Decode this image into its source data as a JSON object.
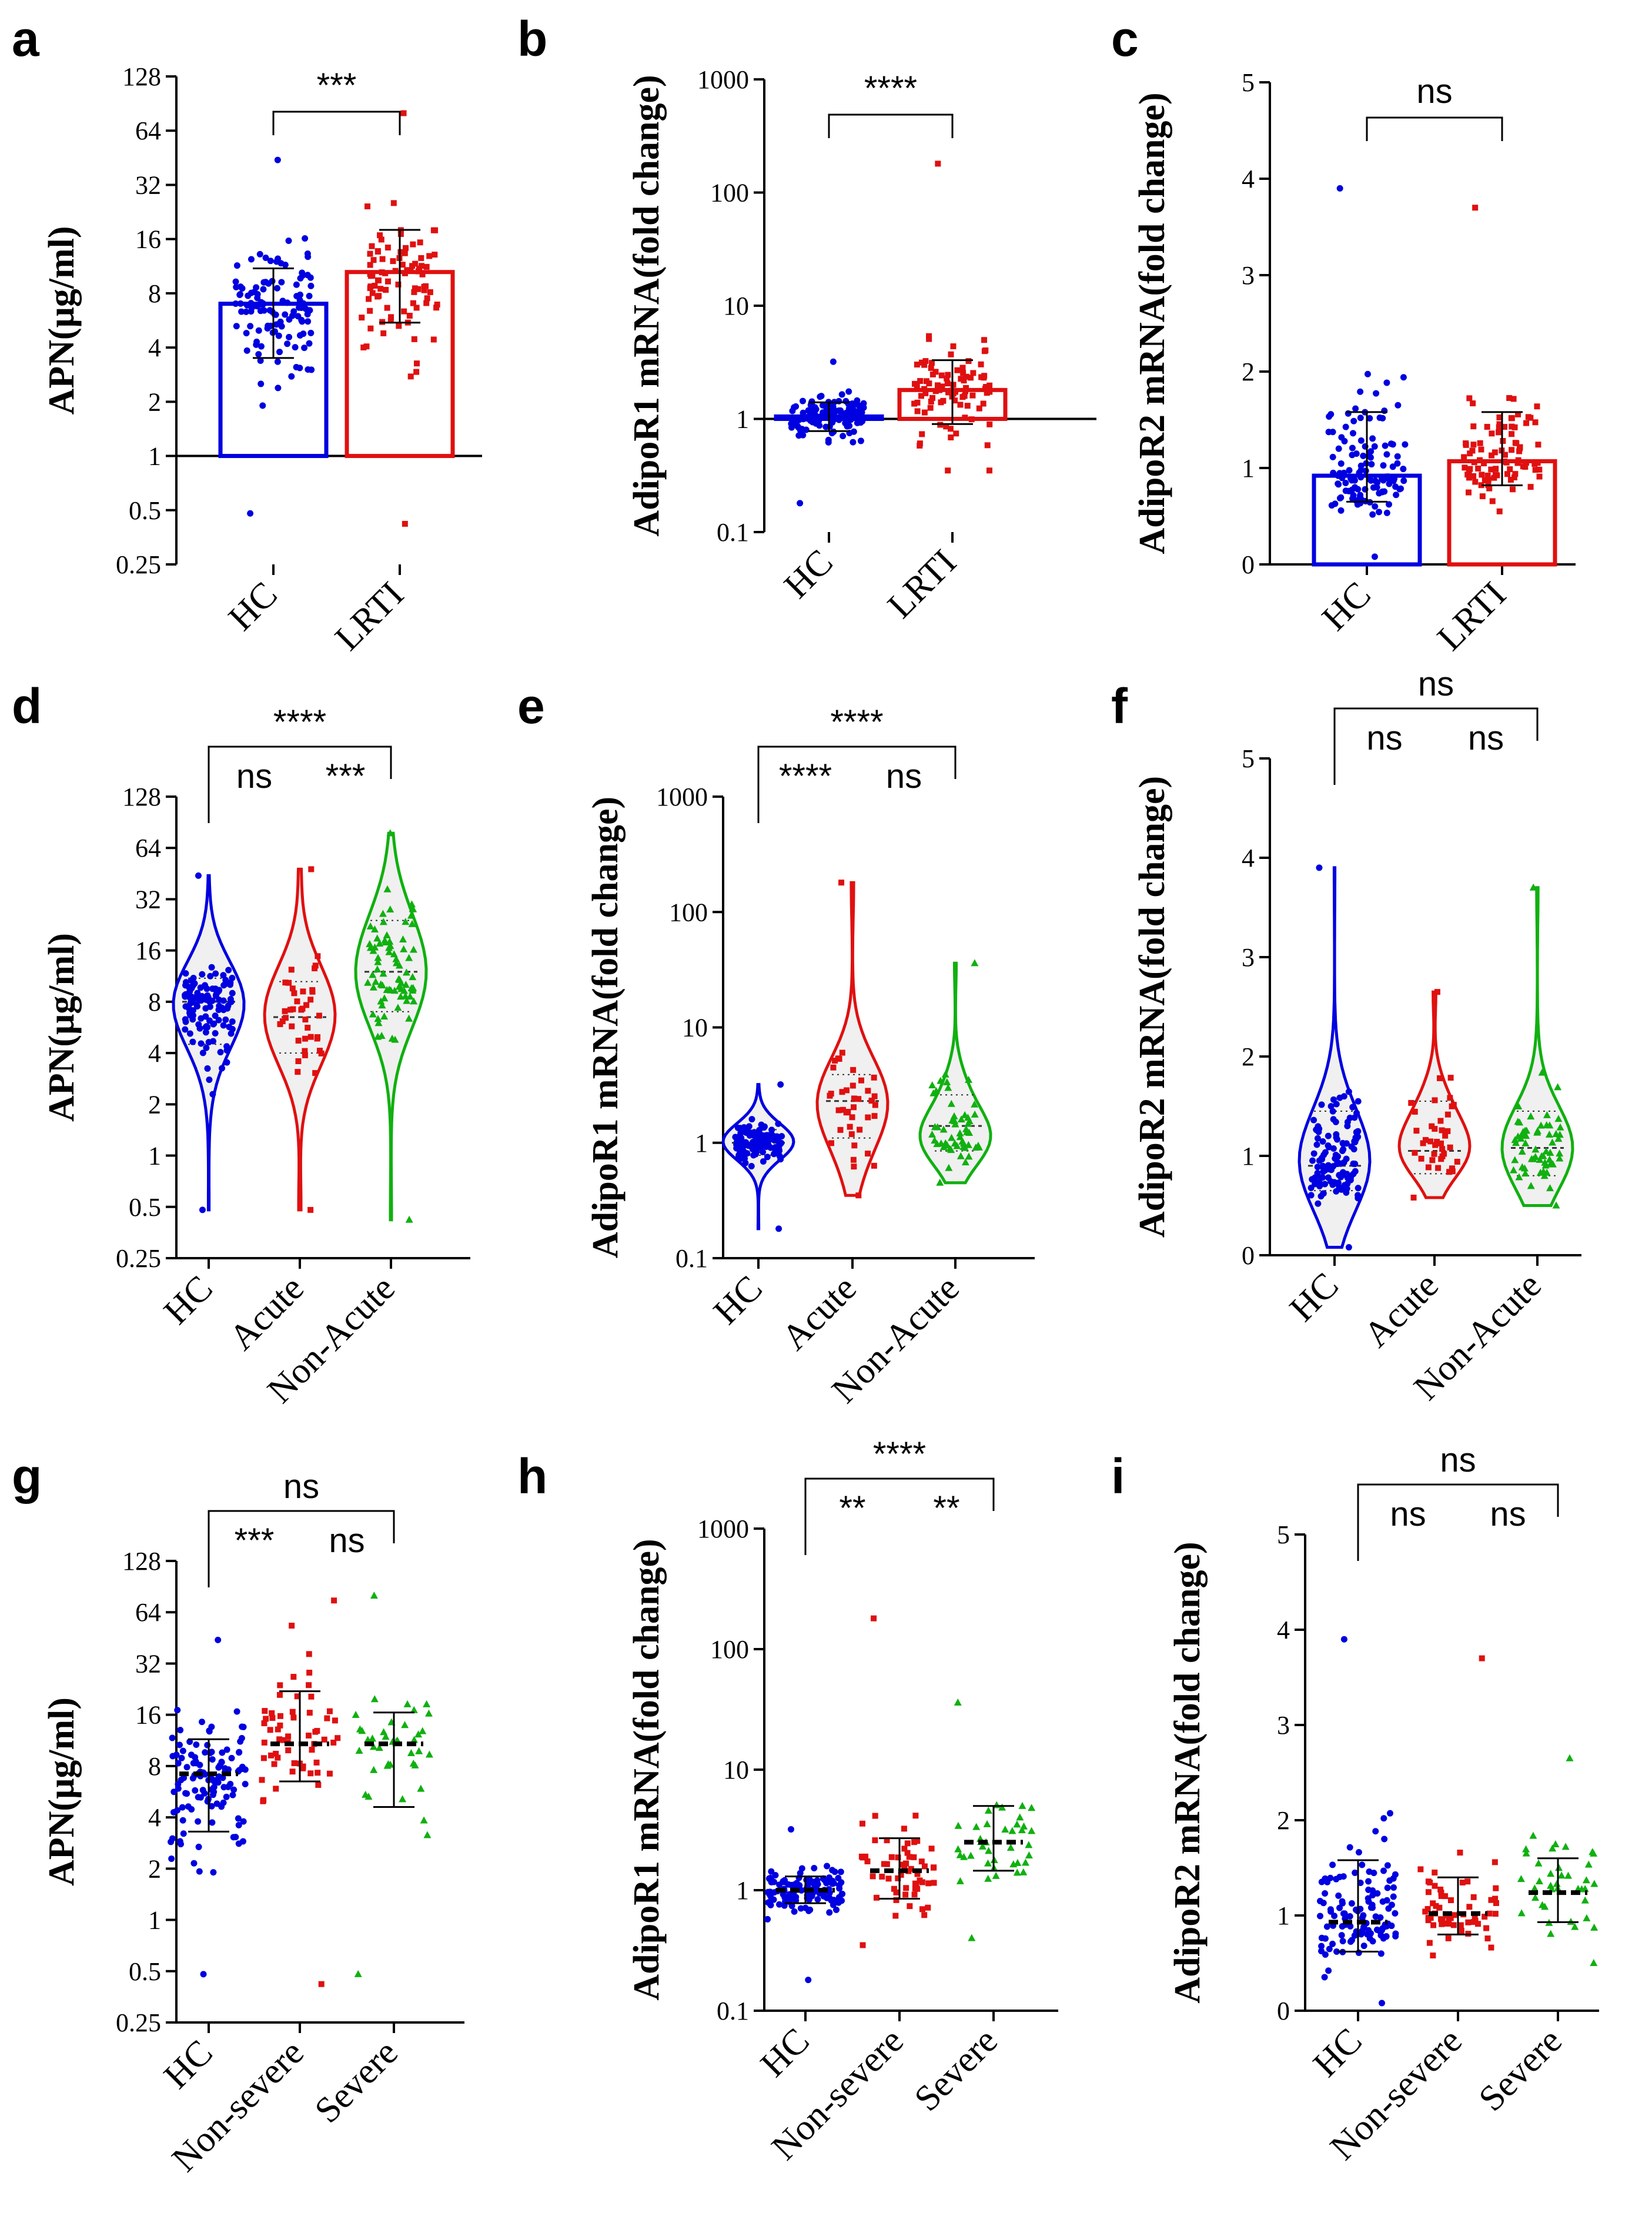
{
  "figure": {
    "colors": {
      "HC": "#0000e0",
      "LRTI": "#e01010",
      "Acute": "#e01010",
      "NonAcute": "#10b010",
      "NonSevere": "#e01010",
      "Severe": "#10b010",
      "axis": "#000000"
    }
  },
  "chart_data": [
    {
      "id": "a",
      "label": "a",
      "type": "bar+scatter",
      "scale": "log2",
      "ylabel": "APN(μg/ml)",
      "yticks": [
        0.25,
        0.5,
        1,
        2,
        4,
        8,
        16,
        32,
        64,
        128
      ],
      "ytick_labels": [
        "0.25",
        "0.5",
        "1",
        "2",
        "4",
        "8",
        "16",
        "32",
        "64",
        "128"
      ],
      "ylim": [
        0.25,
        128
      ],
      "baseline": 1,
      "categories": [
        "HC",
        "LRTI"
      ],
      "series": [
        {
          "name": "HC",
          "n": 120,
          "marker": "circle",
          "center": 7,
          "lo": 3.5,
          "hi": 11,
          "min": 0.48,
          "max": 44
        },
        {
          "name": "LRTI",
          "n": 90,
          "marker": "square",
          "center": 10.5,
          "lo": 5.5,
          "hi": 18,
          "min": 0.42,
          "max": 80
        }
      ],
      "comparisons": [
        {
          "from": 0,
          "to": 1,
          "label": "***",
          "level": 0
        }
      ]
    },
    {
      "id": "b",
      "label": "b",
      "type": "bar+scatter",
      "scale": "log10",
      "ylabel": "AdipoR1 mRNA(fold change)",
      "yticks": [
        0.1,
        1,
        10,
        100,
        1000
      ],
      "ytick_labels": [
        "0.1",
        "1",
        "10",
        "100",
        "1000"
      ],
      "ylim": [
        0.1,
        1000
      ],
      "baseline": 1,
      "categories": [
        "HC",
        "LRTI"
      ],
      "series": [
        {
          "name": "HC",
          "n": 120,
          "marker": "circle",
          "center": 1.05,
          "lo": 0.78,
          "hi": 1.4,
          "min": 0.18,
          "max": 3.2
        },
        {
          "name": "LRTI",
          "n": 90,
          "marker": "square",
          "center": 1.8,
          "lo": 0.9,
          "hi": 3.3,
          "min": 0.35,
          "max": 180
        }
      ],
      "comparisons": [
        {
          "from": 0,
          "to": 1,
          "label": "****",
          "level": 0
        }
      ]
    },
    {
      "id": "c",
      "label": "c",
      "type": "bar+scatter",
      "scale": "linear",
      "ylabel": "AdipoR2 mRNA(fold change)",
      "yticks": [
        0,
        1,
        2,
        3,
        4,
        5
      ],
      "ytick_labels": [
        "0",
        "1",
        "2",
        "3",
        "4",
        "5"
      ],
      "ylim": [
        0,
        5
      ],
      "baseline": 0,
      "categories": [
        "HC",
        "LRTI"
      ],
      "series": [
        {
          "name": "HC",
          "n": 120,
          "marker": "circle",
          "center": 0.92,
          "lo": 0.65,
          "hi": 1.58,
          "min": 0.08,
          "max": 3.9
        },
        {
          "name": "LRTI",
          "n": 90,
          "marker": "square",
          "center": 1.07,
          "lo": 0.82,
          "hi": 1.58,
          "min": 0.55,
          "max": 3.7
        }
      ],
      "comparisons": [
        {
          "from": 0,
          "to": 1,
          "label": "ns",
          "level": 0
        }
      ]
    },
    {
      "id": "d",
      "label": "d",
      "type": "violin",
      "scale": "log2",
      "ylabel": "APN(μg/ml)",
      "yticks": [
        0.25,
        0.5,
        1,
        2,
        4,
        8,
        16,
        32,
        64,
        128
      ],
      "ytick_labels": [
        "0.25",
        "0.5",
        "1",
        "2",
        "4",
        "8",
        "16",
        "32",
        "64",
        "128"
      ],
      "ylim": [
        0.25,
        128
      ],
      "categories": [
        "HC",
        "Acute",
        "Non-Acute"
      ],
      "series": [
        {
          "name": "HC",
          "n": 120,
          "marker": "circle",
          "median": 8,
          "q1": 4.5,
          "q3": 11,
          "min": 0.48,
          "max": 44
        },
        {
          "name": "Acute",
          "n": 40,
          "marker": "square",
          "median": 6.5,
          "q1": 4,
          "q3": 10.5,
          "min": 0.48,
          "max": 48
        },
        {
          "name": "Non-Acute",
          "n": 80,
          "marker": "triangle",
          "median": 12,
          "q1": 7,
          "q3": 24,
          "min": 0.42,
          "max": 78
        }
      ],
      "comparisons": [
        {
          "from": 0,
          "to": 2,
          "label": "****",
          "level": 1
        },
        {
          "from": 0,
          "to": 1,
          "label": "ns",
          "level": 0,
          "shared": true
        },
        {
          "from": 1,
          "to": 2,
          "label": "***",
          "level": 0,
          "shared": true
        }
      ]
    },
    {
      "id": "e",
      "label": "e",
      "type": "violin",
      "scale": "log10",
      "ylabel": "AdipoR1 mRNA(fold change)",
      "yticks": [
        0.1,
        1,
        10,
        100,
        1000
      ],
      "ytick_labels": [
        "0.1",
        "1",
        "10",
        "100",
        "1000"
      ],
      "ylim": [
        0.1,
        1000
      ],
      "categories": [
        "HC",
        "Acute",
        "Non-Acute"
      ],
      "series": [
        {
          "name": "HC",
          "n": 120,
          "marker": "circle",
          "median": 1.0,
          "q1": 0.78,
          "q3": 1.3,
          "min": 0.18,
          "max": 3.2
        },
        {
          "name": "Acute",
          "n": 40,
          "marker": "square",
          "median": 2.3,
          "q1": 1.1,
          "q3": 3.9,
          "min": 0.35,
          "max": 180
        },
        {
          "name": "Non-Acute",
          "n": 55,
          "marker": "triangle",
          "median": 1.4,
          "q1": 0.85,
          "q3": 2.6,
          "min": 0.45,
          "max": 36
        }
      ],
      "comparisons": [
        {
          "from": 0,
          "to": 2,
          "label": "****",
          "level": 1
        },
        {
          "from": 0,
          "to": 1,
          "label": "****",
          "level": 0,
          "shared": true
        },
        {
          "from": 1,
          "to": 2,
          "label": "ns",
          "level": 0,
          "shared": true
        }
      ]
    },
    {
      "id": "f",
      "label": "f",
      "type": "violin",
      "scale": "linear",
      "ylabel": "AdipoR2 mRNA(fold change)",
      "yticks": [
        0,
        1,
        2,
        3,
        4,
        5
      ],
      "ytick_labels": [
        "0",
        "1",
        "2",
        "3",
        "4",
        "5"
      ],
      "ylim": [
        0,
        5
      ],
      "categories": [
        "HC",
        "Acute",
        "Non-Acute"
      ],
      "series": [
        {
          "name": "HC",
          "n": 120,
          "marker": "circle",
          "median": 0.9,
          "q1": 0.65,
          "q3": 1.45,
          "min": 0.08,
          "max": 3.9
        },
        {
          "name": "Acute",
          "n": 40,
          "marker": "square",
          "median": 1.05,
          "q1": 0.82,
          "q3": 1.55,
          "min": 0.58,
          "max": 2.65
        },
        {
          "name": "Non-Acute",
          "n": 60,
          "marker": "triangle",
          "median": 1.08,
          "q1": 0.8,
          "q3": 1.45,
          "min": 0.5,
          "max": 3.7
        }
      ],
      "comparisons": [
        {
          "from": 0,
          "to": 2,
          "label": "ns",
          "level": 1
        },
        {
          "from": 0,
          "to": 1,
          "label": "ns",
          "level": 0,
          "shared": true
        },
        {
          "from": 1,
          "to": 2,
          "label": "ns",
          "level": 0,
          "shared": true
        }
      ]
    },
    {
      "id": "g",
      "label": "g",
      "type": "scatter",
      "scale": "log2",
      "ylabel": "APN(μg/ml)",
      "yticks": [
        0.25,
        0.5,
        1,
        2,
        4,
        8,
        16,
        32,
        64,
        128
      ],
      "ytick_labels": [
        "0.25",
        "0.5",
        "1",
        "2",
        "4",
        "8",
        "16",
        "32",
        "64",
        "128"
      ],
      "ylim": [
        0.25,
        128
      ],
      "categories": [
        "HC",
        "Non-severe",
        "Severe"
      ],
      "series": [
        {
          "name": "HC",
          "n": 120,
          "marker": "circle",
          "center": 7.2,
          "lo": 3.3,
          "hi": 11.5,
          "min": 0.48,
          "max": 44
        },
        {
          "name": "Non-severe",
          "n": 60,
          "marker": "square",
          "center": 10.8,
          "lo": 6.5,
          "hi": 22,
          "min": 0.42,
          "max": 75
        },
        {
          "name": "Severe",
          "n": 40,
          "marker": "triangle",
          "center": 10.8,
          "lo": 4.6,
          "hi": 16.5,
          "min": 0.48,
          "max": 80
        }
      ],
      "comparisons": [
        {
          "from": 0,
          "to": 2,
          "label": "ns",
          "level": 1
        },
        {
          "from": 0,
          "to": 1,
          "label": "***",
          "level": 0,
          "shared": true
        },
        {
          "from": 1,
          "to": 2,
          "label": "ns",
          "level": 0,
          "shared": true
        }
      ]
    },
    {
      "id": "h",
      "label": "h",
      "type": "scatter",
      "scale": "log10",
      "ylabel": "AdipoR1 mRNA(fold change)",
      "yticks": [
        0.1,
        1,
        10,
        100,
        1000
      ],
      "ytick_labels": [
        "0.1",
        "1",
        "10",
        "100",
        "1000"
      ],
      "ylim": [
        0.1,
        1000
      ],
      "categories": [
        "HC",
        "Non-severe",
        "Severe"
      ],
      "series": [
        {
          "name": "HC",
          "n": 120,
          "marker": "circle",
          "center": 1.0,
          "lo": 0.78,
          "hi": 1.3,
          "min": 0.18,
          "max": 3.2
        },
        {
          "name": "Non-severe",
          "n": 60,
          "marker": "square",
          "center": 1.45,
          "lo": 0.85,
          "hi": 2.7,
          "min": 0.35,
          "max": 180
        },
        {
          "name": "Severe",
          "n": 40,
          "marker": "triangle",
          "center": 2.5,
          "lo": 1.45,
          "hi": 5.0,
          "min": 0.4,
          "max": 36
        }
      ],
      "comparisons": [
        {
          "from": 0,
          "to": 2,
          "label": "****",
          "level": 1
        },
        {
          "from": 0,
          "to": 1,
          "label": "**",
          "level": 0,
          "shared": true
        },
        {
          "from": 1,
          "to": 2,
          "label": "**",
          "level": 0,
          "shared": true
        }
      ]
    },
    {
      "id": "i",
      "label": "i",
      "type": "scatter",
      "scale": "linear",
      "ylabel": "AdipoR2 mRNA(fold change)",
      "yticks": [
        0,
        1,
        2,
        3,
        4,
        5
      ],
      "ytick_labels": [
        "0",
        "1",
        "2",
        "3",
        "4",
        "5"
      ],
      "ylim": [
        0,
        5
      ],
      "categories": [
        "HC",
        "Non-severe",
        "Severe"
      ],
      "series": [
        {
          "name": "HC",
          "n": 120,
          "marker": "circle",
          "center": 0.93,
          "lo": 0.62,
          "hi": 1.58,
          "min": 0.08,
          "max": 3.9
        },
        {
          "name": "Non-severe",
          "n": 60,
          "marker": "square",
          "center": 1.02,
          "lo": 0.8,
          "hi": 1.4,
          "min": 0.58,
          "max": 3.7
        },
        {
          "name": "Severe",
          "n": 40,
          "marker": "triangle",
          "center": 1.24,
          "lo": 0.93,
          "hi": 1.6,
          "min": 0.5,
          "max": 2.65
        }
      ],
      "comparisons": [
        {
          "from": 0,
          "to": 2,
          "label": "ns",
          "level": 1
        },
        {
          "from": 0,
          "to": 1,
          "label": "ns",
          "level": 0,
          "shared": true
        },
        {
          "from": 1,
          "to": 2,
          "label": "ns",
          "level": 0,
          "shared": true
        }
      ]
    }
  ]
}
